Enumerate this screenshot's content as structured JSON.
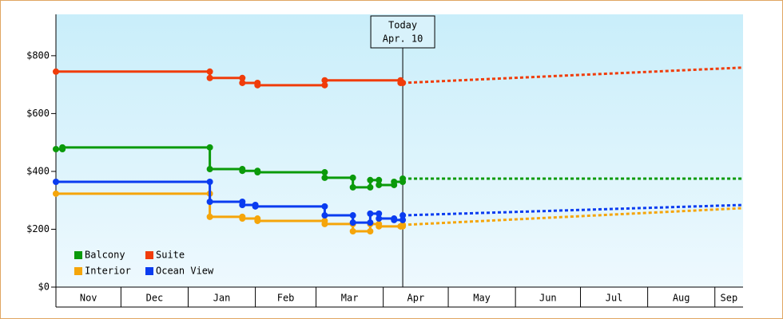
{
  "chart_data": {
    "type": "step-line",
    "xlim": [
      0,
      317
    ],
    "ylim": [
      0,
      943
    ],
    "yticks": [
      {
        "value": 0,
        "label": "$0"
      },
      {
        "value": 200,
        "label": "$200"
      },
      {
        "value": 400,
        "label": "$400"
      },
      {
        "value": 600,
        "label": "$600"
      },
      {
        "value": 800,
        "label": "$800"
      }
    ],
    "xticks": [
      {
        "value": 0,
        "label": "Nov"
      },
      {
        "value": 30,
        "label": "Dec"
      },
      {
        "value": 61,
        "label": "Jan"
      },
      {
        "value": 92,
        "label": "Feb"
      },
      {
        "value": 120,
        "label": "Mar"
      },
      {
        "value": 151,
        "label": "Apr"
      },
      {
        "value": 181,
        "label": "May"
      },
      {
        "value": 212,
        "label": "Jun"
      },
      {
        "value": 242,
        "label": "Jul"
      },
      {
        "value": 273,
        "label": "Aug"
      },
      {
        "value": 304,
        "label": "Sep"
      }
    ],
    "today": {
      "x": 160,
      "label": [
        "Today",
        "Apr. 10"
      ]
    },
    "series": [
      {
        "name": "Balcony",
        "color": "#0a9a0a",
        "x": [
          0,
          3,
          71,
          86,
          93,
          124,
          137,
          145,
          149,
          156,
          160
        ],
        "values": [
          477,
          483,
          408,
          402,
          397,
          378,
          345,
          370,
          353,
          364,
          375
        ],
        "forecast": {
          "x": [
            160,
            317
          ],
          "values": [
            375,
            375
          ]
        }
      },
      {
        "name": "Suite",
        "color": "#f03c0a",
        "x": [
          0,
          71,
          86,
          93,
          124,
          159,
          160
        ],
        "values": [
          745,
          723,
          706,
          698,
          715,
          706,
          706
        ],
        "forecast": {
          "x": [
            160,
            317
          ],
          "values": [
            706,
            759
          ]
        }
      },
      {
        "name": "Interior",
        "color": "#f5a50a",
        "x": [
          0,
          71,
          86,
          93,
          124,
          137,
          145,
          149,
          159,
          160
        ],
        "values": [
          323,
          243,
          237,
          229,
          218,
          193,
          218,
          210,
          210,
          215
        ],
        "forecast": {
          "x": [
            160,
            317
          ],
          "values": [
            215,
            273
          ]
        }
      },
      {
        "name": "Ocean View",
        "color": "#0a3cf0",
        "x": [
          0,
          71,
          86,
          92,
          124,
          137,
          145,
          149,
          156,
          160
        ],
        "values": [
          364,
          295,
          284,
          279,
          248,
          223,
          254,
          237,
          232,
          248
        ],
        "forecast": {
          "x": [
            160,
            317
          ],
          "values": [
            248,
            284
          ]
        }
      }
    ]
  }
}
